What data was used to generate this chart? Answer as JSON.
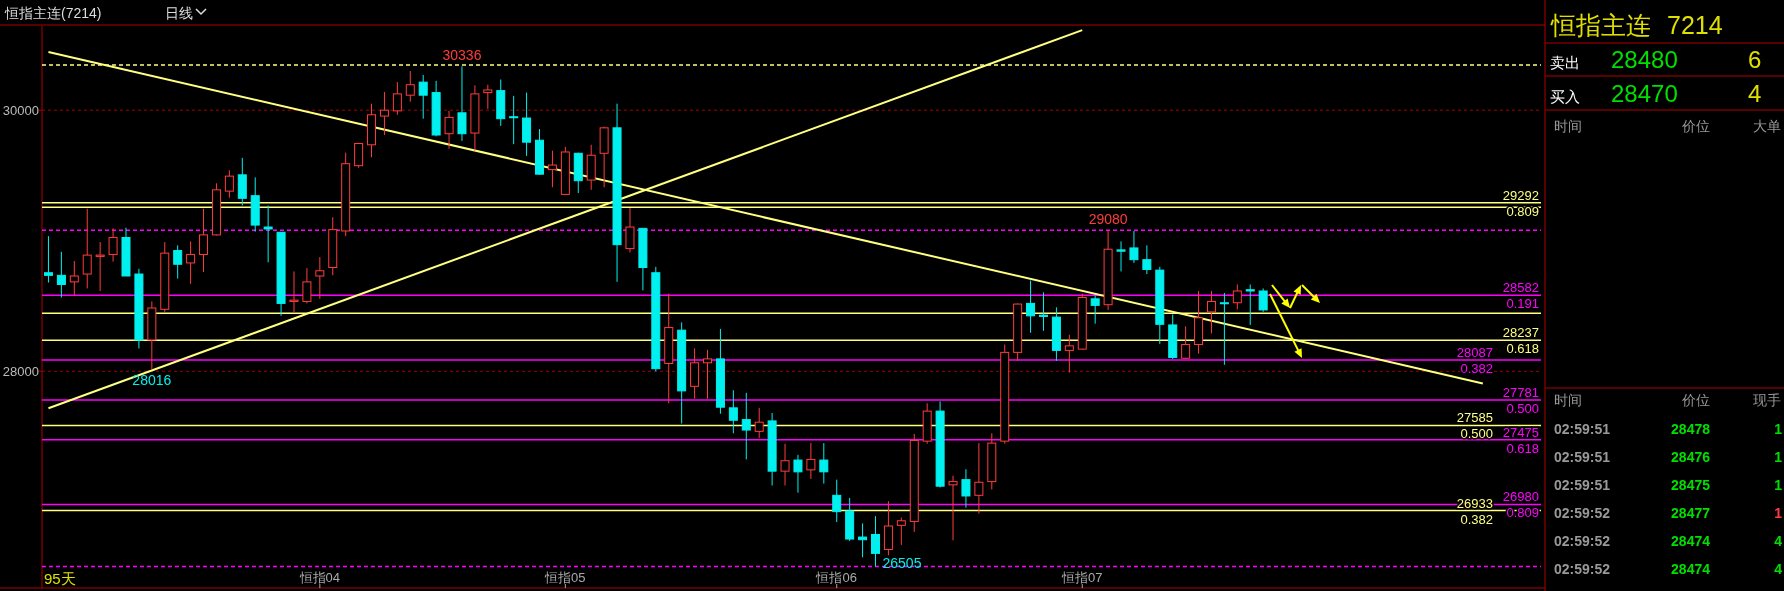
{
  "chart_data": [
    {
      "type": "candlestick",
      "title": "恒指主连(7214)",
      "subtitle": "日线",
      "categories": [
        null,
        null,
        null,
        null,
        null,
        null,
        null,
        null,
        null,
        null,
        null,
        null,
        null,
        null,
        null,
        null,
        null,
        null,
        null,
        null,
        null,
        "恒指04",
        null,
        null,
        null,
        null,
        null,
        null,
        null,
        null,
        null,
        null,
        null,
        null,
        null,
        null,
        null,
        null,
        null,
        null,
        "恒指05",
        null,
        null,
        null,
        null,
        null,
        null,
        null,
        null,
        null,
        null,
        null,
        null,
        null,
        null,
        null,
        null,
        null,
        null,
        null,
        null,
        "恒指06",
        null,
        null,
        null,
        null,
        null,
        null,
        null,
        null,
        null,
        null,
        null,
        null,
        null,
        null,
        null,
        null,
        null,
        null,
        "恒指07",
        null,
        null,
        null,
        null,
        null,
        null,
        null,
        null,
        null,
        null,
        null,
        null,
        null,
        null,
        null,
        null,
        null,
        null,
        null,
        null,
        null,
        null,
        null,
        null,
        null,
        null,
        null,
        null,
        null,
        null,
        null,
        null,
        null,
        null,
        null
      ],
      "ohlc": [
        [
          28755,
          29035,
          28680,
          28735
        ],
        [
          28735,
          28915,
          28565,
          28665
        ],
        [
          28685,
          28845,
          28580,
          28730
        ],
        [
          28745,
          29245,
          28635,
          28890
        ],
        [
          28880,
          28990,
          28615,
          28890
        ],
        [
          28895,
          29095,
          28840,
          29025
        ],
        [
          29025,
          29100,
          28730,
          28730
        ],
        [
          28745,
          28785,
          28175,
          28240
        ],
        [
          28240,
          28535,
          28016,
          28485
        ],
        [
          28475,
          28990,
          28455,
          28905
        ],
        [
          28925,
          28965,
          28710,
          28820
        ],
        [
          28830,
          28995,
          28670,
          28895
        ],
        [
          28895,
          29245,
          28760,
          29045
        ],
        [
          29045,
          29440,
          29040,
          29390
        ],
        [
          29380,
          29540,
          29330,
          29495
        ],
        [
          29505,
          29635,
          29270,
          29325
        ],
        [
          29345,
          29485,
          29070,
          29120
        ],
        [
          29105,
          29270,
          28835,
          29090
        ],
        [
          29065,
          29065,
          28425,
          28520
        ],
        [
          28535,
          28765,
          28450,
          28545
        ],
        [
          28535,
          28790,
          28520,
          28685
        ],
        [
          28730,
          28875,
          28555,
          28770
        ],
        [
          28795,
          29180,
          28735,
          29085
        ],
        [
          29075,
          29675,
          29035,
          29590
        ],
        [
          29575,
          29750,
          29560,
          29745
        ],
        [
          29735,
          30050,
          29640,
          29965
        ],
        [
          29955,
          30140,
          29810,
          30000
        ],
        [
          29995,
          30215,
          29965,
          30125
        ],
        [
          30115,
          30300,
          30065,
          30195
        ],
        [
          30215,
          30270,
          29935,
          30115
        ],
        [
          30135,
          30225,
          29800,
          29810
        ],
        [
          29820,
          29995,
          29705,
          29945
        ],
        [
          29980,
          30336,
          29765,
          29820
        ],
        [
          29825,
          30190,
          29690,
          30125
        ],
        [
          30135,
          30195,
          30010,
          30155
        ],
        [
          30150,
          30235,
          29880,
          29935
        ],
        [
          29950,
          30110,
          29740,
          29945
        ],
        [
          29940,
          30135,
          29650,
          29755
        ],
        [
          29770,
          29855,
          29505,
          29510
        ],
        [
          29545,
          29690,
          29410,
          29580
        ],
        [
          29355,
          29720,
          29350,
          29680
        ],
        [
          29670,
          29675,
          29365,
          29460
        ],
        [
          29465,
          29735,
          29390,
          29655
        ],
        [
          29670,
          29875,
          29410,
          29865
        ],
        [
          29865,
          30050,
          28685,
          28970
        ],
        [
          28940,
          29250,
          28910,
          29105
        ],
        [
          29095,
          29095,
          28620,
          28795
        ],
        [
          28755,
          28800,
          28000,
          28020
        ],
        [
          28060,
          28595,
          27755,
          28335
        ],
        [
          28315,
          28375,
          27600,
          27850
        ],
        [
          27885,
          28175,
          27790,
          28065
        ],
        [
          28065,
          28165,
          27790,
          28095
        ],
        [
          28095,
          28325,
          27675,
          27725
        ],
        [
          27720,
          27855,
          27525,
          27625
        ],
        [
          27630,
          27835,
          27325,
          27550
        ],
        [
          27540,
          27720,
          27490,
          27610
        ],
        [
          27620,
          27680,
          27125,
          27235
        ],
        [
          27235,
          27445,
          27125,
          27315
        ],
        [
          27320,
          27360,
          27070,
          27230
        ],
        [
          27245,
          27450,
          27175,
          27325
        ],
        [
          27320,
          27450,
          27140,
          27230
        ],
        [
          27050,
          27170,
          26845,
          26925
        ],
        [
          26930,
          27030,
          26700,
          26715
        ],
        [
          26730,
          26835,
          26575,
          26710
        ],
        [
          26750,
          26890,
          26505,
          26605
        ],
        [
          26635,
          27005,
          26590,
          26815
        ],
        [
          26820,
          26880,
          26670,
          26855
        ],
        [
          26850,
          27520,
          26770,
          27470
        ],
        [
          27465,
          27755,
          27445,
          27695
        ],
        [
          27695,
          27770,
          27110,
          27120
        ],
        [
          27130,
          27200,
          26705,
          27155
        ],
        [
          27170,
          27250,
          26955,
          27045
        ],
        [
          27050,
          27450,
          26910,
          27150
        ],
        [
          27155,
          27525,
          27095,
          27450
        ],
        [
          27465,
          28205,
          27445,
          28145
        ],
        [
          28145,
          28520,
          28080,
          28515
        ],
        [
          28520,
          28695,
          28295,
          28425
        ],
        [
          28430,
          28605,
          28310,
          28420
        ],
        [
          28415,
          28490,
          28080,
          28160
        ],
        [
          28160,
          28280,
          27990,
          28195
        ],
        [
          28170,
          28595,
          28165,
          28565
        ],
        [
          28555,
          28580,
          28365,
          28505
        ],
        [
          28510,
          29080,
          28470,
          28935
        ],
        [
          28930,
          28995,
          28765,
          28920
        ],
        [
          28945,
          29075,
          28830,
          28855
        ],
        [
          28855,
          28965,
          28745,
          28780
        ],
        [
          28775,
          28800,
          28210,
          28360
        ],
        [
          28355,
          28435,
          28095,
          28105
        ],
        [
          28100,
          28345,
          28095,
          28205
        ],
        [
          28205,
          28615,
          28135,
          28410
        ],
        [
          28455,
          28615,
          28290,
          28535
        ],
        [
          28525,
          28600,
          28050,
          28520
        ],
        [
          28525,
          28665,
          28475,
          28615
        ],
        [
          28625,
          28665,
          28355,
          28615
        ],
        [
          28615,
          28635,
          28455,
          28470
        ],
        null,
        null,
        null,
        null,
        null,
        null,
        null,
        null,
        null,
        null,
        null,
        null,
        null,
        null,
        null,
        null,
        null,
        null,
        null,
        null,
        null
      ],
      "series": [
        {
          "type": "line",
          "color": "#ffff80",
          "values": [
            30446,
            null,
            null,
            null,
            null,
            null,
            null,
            null,
            null,
            null,
            null,
            null,
            null,
            null,
            null,
            null,
            null,
            null,
            null,
            null,
            null,
            null,
            null,
            null,
            null,
            null,
            null,
            null,
            null,
            null,
            null,
            null,
            null,
            null,
            null,
            null,
            null,
            null,
            null,
            null,
            null,
            null,
            null,
            null,
            null,
            null,
            null,
            null,
            null,
            null,
            null,
            null,
            null,
            null,
            null,
            null,
            null,
            null,
            null,
            null,
            null,
            null,
            null,
            null,
            null,
            null,
            null,
            null,
            null,
            null,
            null,
            null,
            null,
            null,
            null,
            null,
            null,
            null,
            null,
            null,
            null,
            null,
            null,
            null,
            null,
            null,
            null,
            null,
            null,
            null,
            null,
            null,
            null,
            null,
            null,
            null,
            null,
            null,
            null,
            null,
            null,
            null,
            null,
            null,
            null,
            null,
            null,
            null,
            null,
            null,
            null,
            27907,
            null,
            null,
            null,
            null
          ]
        },
        {
          "type": "line",
          "color": "#ffff80",
          "values": [
            27717,
            null,
            null,
            null,
            null,
            null,
            null,
            null,
            null,
            null,
            null,
            null,
            null,
            null,
            null,
            null,
            null,
            null,
            null,
            null,
            null,
            null,
            null,
            null,
            null,
            null,
            null,
            null,
            null,
            null,
            null,
            null,
            null,
            null,
            null,
            null,
            null,
            null,
            null,
            null,
            null,
            null,
            null,
            null,
            null,
            null,
            null,
            null,
            null,
            null,
            null,
            null,
            null,
            null,
            null,
            null,
            null,
            null,
            null,
            null,
            null,
            null,
            null,
            null,
            null,
            null,
            null,
            null,
            null,
            null,
            null,
            null,
            null,
            null,
            null,
            null,
            null,
            null,
            null,
            null,
            30613,
            null,
            null,
            null,
            null,
            null,
            null,
            null,
            null,
            null,
            null,
            null,
            null,
            null,
            null,
            null,
            null,
            null,
            null,
            null,
            null,
            null,
            null,
            null,
            null,
            null,
            null,
            null,
            null,
            null,
            null,
            null,
            null,
            null,
            null,
            null
          ]
        }
      ],
      "ylim": [
        26340,
        30645
      ],
      "yticks": [
        28000,
        30000
      ],
      "grid": "y",
      "ref_lines": [
        {
          "axis": "y",
          "value": 30347,
          "color": "#ffff80",
          "line_style": "dashed"
        },
        {
          "axis": "y",
          "value": 29292,
          "label": "29292\n0.809",
          "color": "#ffff80"
        },
        {
          "axis": "y",
          "value": 29257,
          "color": "#ffff80"
        },
        {
          "axis": "y",
          "value": 29080,
          "color": "#ff00ff",
          "line_style": "dashed"
        },
        {
          "axis": "y",
          "value": 28582,
          "label": "28582\n0.191",
          "color": "#ff00ff"
        },
        {
          "axis": "y",
          "value": 28445,
          "color": "#ffff80"
        },
        {
          "axis": "y",
          "value": 28237,
          "label": "28237\n0.618",
          "color": "#ffff80"
        },
        {
          "axis": "y",
          "value": 28087,
          "label": "28087\n0.382",
          "color": "#ff00ff"
        },
        {
          "axis": "y",
          "value": 27781,
          "label": "27781\n0.500",
          "color": "#ff00ff"
        },
        {
          "axis": "y",
          "value": 27585,
          "label": "27585\n0.500",
          "color": "#ffff80"
        },
        {
          "axis": "y",
          "value": 27475,
          "label": "27475\n0.618",
          "color": "#ff00ff"
        },
        {
          "axis": "y",
          "value": 26980,
          "label": "26980\n0.809",
          "color": "#ff00ff"
        },
        {
          "axis": "y",
          "value": 26933,
          "label": "26933\n0.382",
          "color": "#ffff80"
        },
        {
          "axis": "y",
          "value": 26505,
          "color": "#ff00ff",
          "line_style": "dashed"
        }
      ],
      "annotations": [
        {
          "text": "30336",
          "y": 30336
        },
        {
          "text": "28016",
          "y": 28016
        },
        {
          "text": "26505",
          "y": 26505
        },
        {
          "text": "29080",
          "y": 29080
        },
        "95天"
      ]
    },
    {
      "type": "other",
      "title": "恒指主连",
      "subtitle": "7214",
      "annotations": [
        "卖出",
        "28480",
        "6",
        "买入",
        "28470",
        "4",
        "时间",
        "价位",
        "大单",
        "时间",
        "价位",
        "现手",
        "02:59:51",
        "28478",
        "1",
        "02:59:51",
        "28476",
        "1",
        "02:59:51",
        "28475",
        "1",
        "02:59:52",
        "28477",
        "1",
        "02:59:52",
        "28474",
        "4",
        "02:59:52",
        "28474",
        "4"
      ]
    }
  ]
}
